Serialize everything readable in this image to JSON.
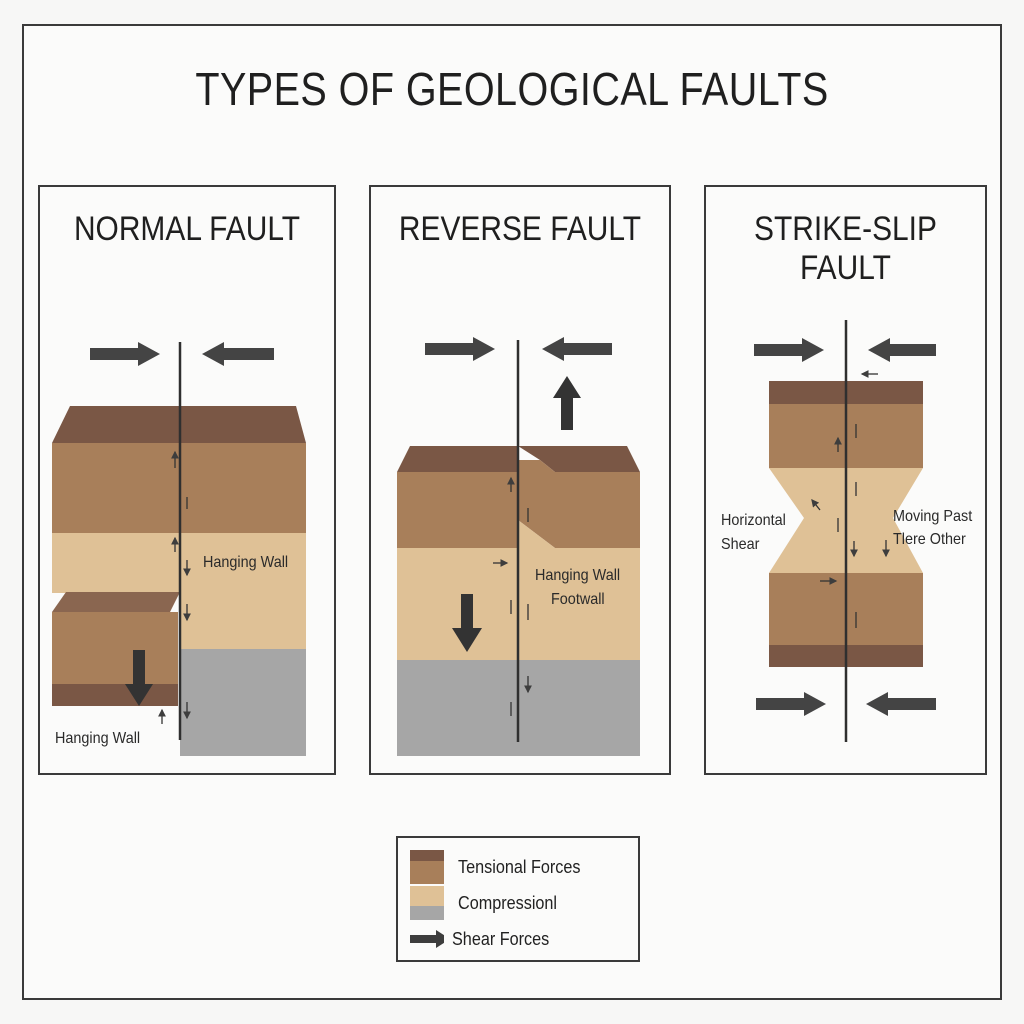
{
  "title": "TYPES OF GEOLOGICAL FAULTS",
  "panels": {
    "normal": {
      "title": "NORMAL FAULT",
      "labels": {
        "hanging_wall_right": "Hanging Wall",
        "hanging_wall_bottom": "Hanging Wall"
      }
    },
    "reverse": {
      "title": "REVERSE FAULT",
      "labels": {
        "hanging_wall": "Hanging Wall",
        "footwall": "Footwall"
      }
    },
    "strike_slip": {
      "title": "STRIKE-SLIP FAULT",
      "labels": {
        "horizontal_shear_1": "Horizontal",
        "horizontal_shear_2": "Shear",
        "moving_past_1": "Moving Past",
        "moving_past_2": "Tlere Other"
      }
    }
  },
  "legend": {
    "items": [
      {
        "label": "Tensional Forces",
        "swatch": "brown-layer"
      },
      {
        "label": "Compressionl",
        "swatch": "tan-layer"
      },
      {
        "label": "Shear Forces",
        "swatch": "arrow"
      }
    ]
  },
  "colors": {
    "dark_brown": "#7a5745",
    "mid_brown": "#a87f5a",
    "tan": "#dfc196",
    "grey": "#a6a6a6",
    "line": "#2f2f2f",
    "arrow": "#3d3d3d"
  }
}
